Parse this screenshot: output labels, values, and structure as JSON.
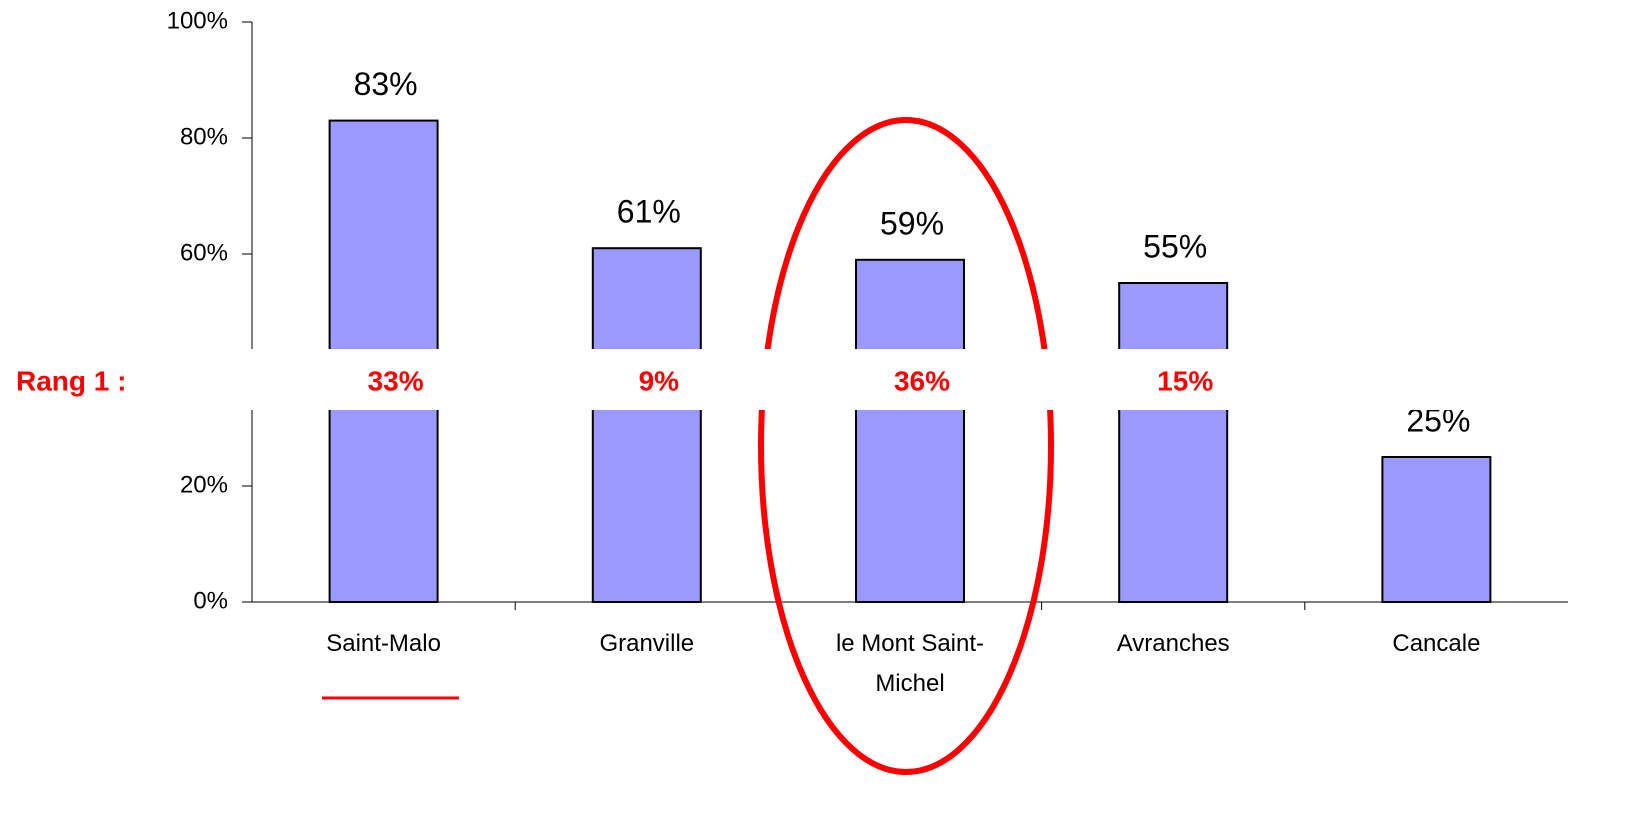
{
  "chart_data": {
    "type": "bar",
    "categories": [
      "Saint-Malo",
      "Granville",
      "le Mont Saint-Michel",
      "Avranches",
      "Cancale"
    ],
    "values": [
      83,
      61,
      59,
      55,
      25
    ],
    "value_labels": [
      "83%",
      "61%",
      "59%",
      "55%",
      "25%"
    ],
    "color": "#9999ff",
    "ylim": [
      0,
      100
    ],
    "yticks": [
      {
        "value": 0,
        "label": "0%"
      },
      {
        "value": 20,
        "label": "20%"
      },
      {
        "value": 60,
        "label": "60%"
      },
      {
        "value": 80,
        "label": "80%"
      },
      {
        "value": 100,
        "label": "100%"
      }
    ],
    "annotation": {
      "label": "Rang 1 :",
      "values": [
        "33%",
        "9%",
        "36%",
        "15%"
      ]
    }
  }
}
